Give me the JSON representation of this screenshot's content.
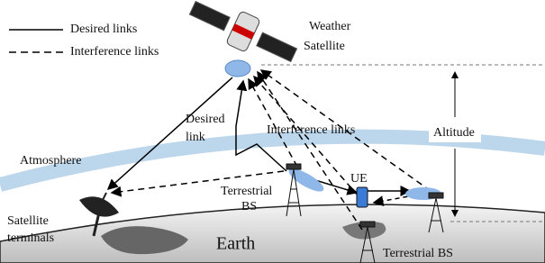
{
  "legend": {
    "desired": "Desired links",
    "interference": "Interference links"
  },
  "labels": {
    "weather_satellite": [
      "Weather",
      "Satellite"
    ],
    "desired_link": [
      "Desired",
      "link"
    ],
    "interference_links": "Interference links",
    "altitude": "Altitude",
    "atmosphere": "Atmosphere",
    "ue": "UE",
    "terrestrial_bs_1": [
      "Terrestrial",
      "BS"
    ],
    "satellite_terminals": [
      "Satellite",
      "terminals"
    ],
    "earth": "Earth",
    "terrestrial_bs_2": "Terrestrial BS"
  }
}
